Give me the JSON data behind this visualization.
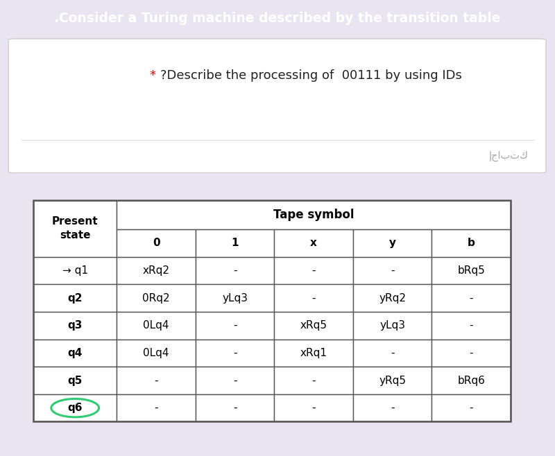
{
  "title": ".Consider a Turing machine described by the transition table",
  "title_bg": "#7B52AB",
  "title_color": "#FFFFFF",
  "question_line1": "?Describe the processing of  00111 by using IDs",
  "arabic_text": "إجابتك",
  "page_bg": "#E8E5F0",
  "card_bg": "#FFFFFF",
  "card2_bg": "#FAFAFA",
  "table_header_row": [
    "0",
    "1",
    "x",
    "y",
    "b"
  ],
  "table_states": [
    "→ q1",
    "q2",
    "q3",
    "q4",
    "q5",
    "q6"
  ],
  "table_data": [
    [
      "xRq2",
      "-",
      "-",
      "-",
      "bRq5"
    ],
    [
      "0Rq2",
      "yLq3",
      "-",
      "yRq2",
      "-"
    ],
    [
      "0Lq4",
      "-",
      "xRq5",
      "yLq3",
      "-"
    ],
    [
      "0Lq4",
      "-",
      "xRq1",
      "-",
      "-"
    ],
    [
      "-",
      "-",
      "-",
      "yRq5",
      "bRq6"
    ],
    [
      "-",
      "-",
      "-",
      "-",
      "-"
    ]
  ],
  "col_header_label": "Tape symbol",
  "circle_color": "#2ECC71",
  "border_color": "#555555"
}
